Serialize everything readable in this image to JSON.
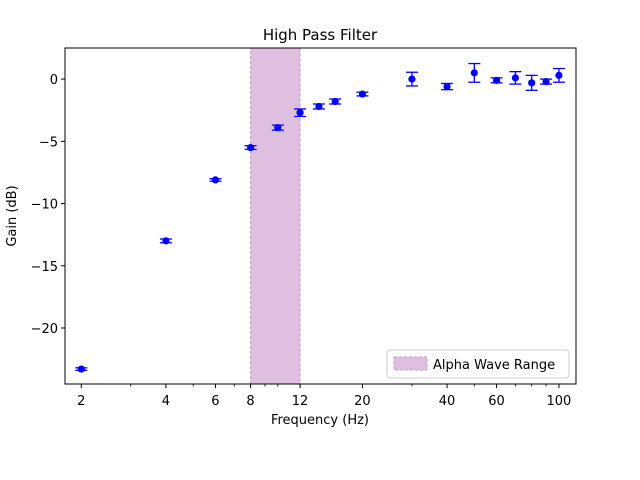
{
  "chart_data": {
    "type": "scatter",
    "title": "High Pass Filter",
    "xlabel": "Frequency (Hz)",
    "ylabel": "Gain (dB)",
    "xscale": "log",
    "xlim": [
      1.75,
      115
    ],
    "ylim": [
      -24.5,
      2.5
    ],
    "xticks": [
      2,
      4,
      6,
      8,
      12,
      20,
      40,
      60,
      100
    ],
    "xtick_labels": [
      "2",
      "4",
      "6",
      "8",
      "12",
      "20",
      "40",
      "60",
      "100"
    ],
    "yticks": [
      0,
      -5,
      -10,
      -15,
      -20
    ],
    "ytick_labels": [
      "0",
      "−5",
      "−10",
      "−15",
      "−20"
    ],
    "series": [
      {
        "name": "Gain",
        "color": "#0000ff",
        "points": [
          {
            "x": 2,
            "y": -23.3,
            "err": 0.1
          },
          {
            "x": 4,
            "y": -13.0,
            "err": 0.15
          },
          {
            "x": 6,
            "y": -8.1,
            "err": 0.1
          },
          {
            "x": 8,
            "y": -5.5,
            "err": 0.15
          },
          {
            "x": 10,
            "y": -3.9,
            "err": 0.2
          },
          {
            "x": 12,
            "y": -2.7,
            "err": 0.3
          },
          {
            "x": 14,
            "y": -2.2,
            "err": 0.2
          },
          {
            "x": 16,
            "y": -1.8,
            "err": 0.2
          },
          {
            "x": 20,
            "y": -1.2,
            "err": 0.15
          },
          {
            "x": 30,
            "y": 0.0,
            "err": 0.55
          },
          {
            "x": 40,
            "y": -0.6,
            "err": 0.25
          },
          {
            "x": 50,
            "y": 0.5,
            "err": 0.75
          },
          {
            "x": 60,
            "y": -0.1,
            "err": 0.2
          },
          {
            "x": 70,
            "y": 0.1,
            "err": 0.5
          },
          {
            "x": 80,
            "y": -0.3,
            "err": 0.6
          },
          {
            "x": 90,
            "y": -0.2,
            "err": 0.2
          },
          {
            "x": 100,
            "y": 0.3,
            "err": 0.55
          }
        ]
      }
    ],
    "shaded_region": {
      "x_start": 8,
      "x_end": 12,
      "label": "Alpha Wave Range",
      "color": "#dfbfe0",
      "edge_color": "#c89ccc"
    },
    "legend": {
      "position": "bottom-right",
      "entries": [
        "Alpha Wave Range"
      ]
    }
  }
}
